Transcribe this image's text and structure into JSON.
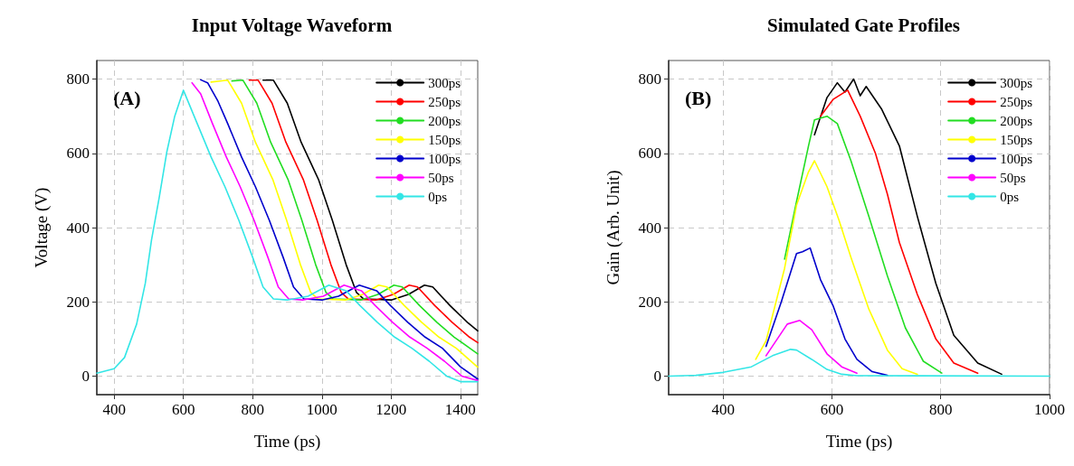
{
  "chart_data": [
    {
      "type": "line",
      "title": "Input Voltage Waveform",
      "xlabel": "Time (ps)",
      "ylabel": "Voltage (V)",
      "annotations": [
        "(A)"
      ],
      "xlim": [
        350,
        1450
      ],
      "xticks": [
        400,
        600,
        800,
        1000,
        1200,
        1400
      ],
      "ylim": [
        -50,
        850
      ],
      "yticks": [
        0,
        200,
        400,
        600,
        800
      ],
      "grid": true,
      "legend": "top right",
      "marker": "none",
      "line_style": "solid",
      "series": [
        {
          "name": "300ps",
          "color": "#000000",
          "x": [
            830,
            860,
            900,
            940,
            990,
            1030,
            1070,
            1100,
            1120,
            1200,
            1250,
            1296,
            1320,
            1370,
            1420,
            1450
          ],
          "values": [
            797,
            797,
            735,
            630,
            530,
            420,
            300,
            225,
            208,
            205,
            220,
            245,
            240,
            190,
            145,
            122
          ]
        },
        {
          "name": "250ps",
          "color": "#ff0000",
          "x": [
            790,
            816,
            856,
            896,
            946,
            986,
            1026,
            1056,
            1076,
            1156,
            1206,
            1252,
            1276,
            1326,
            1376,
            1426,
            1450
          ],
          "values": [
            797,
            797,
            735,
            630,
            530,
            420,
            300,
            225,
            208,
            205,
            220,
            245,
            240,
            190,
            145,
            105,
            90
          ]
        },
        {
          "name": "200ps",
          "color": "#22dd22",
          "x": [
            740,
            772,
            812,
            852,
            902,
            942,
            982,
            1012,
            1032,
            1112,
            1162,
            1208,
            1232,
            1282,
            1332,
            1382,
            1450
          ],
          "values": [
            795,
            797,
            735,
            630,
            530,
            420,
            300,
            225,
            208,
            205,
            220,
            245,
            240,
            190,
            145,
            105,
            60
          ]
        },
        {
          "name": "150ps",
          "color": "#ffff00",
          "x": [
            680,
            700,
            728,
            768,
            808,
            858,
            898,
            938,
            968,
            988,
            1068,
            1118,
            1164,
            1188,
            1238,
            1288,
            1338,
            1388,
            1450
          ],
          "values": [
            792,
            794,
            797,
            735,
            630,
            530,
            420,
            300,
            225,
            208,
            205,
            220,
            245,
            240,
            190,
            145,
            105,
            75,
            24
          ]
        },
        {
          "name": "100ps",
          "color": "#0000cc",
          "x": [
            650,
            670,
            700,
            728,
            768,
            808,
            848,
            888,
            918,
            948,
            1000,
            1048,
            1108,
            1158,
            1198,
            1248,
            1298,
            1348,
            1400,
            1450
          ],
          "values": [
            798,
            790,
            740,
            680,
            590,
            510,
            420,
            320,
            240,
            208,
            205,
            215,
            245,
            230,
            190,
            145,
            105,
            75,
            25,
            -8
          ]
        },
        {
          "name": "50ps",
          "color": "#ff00ff",
          "x": [
            625,
            650,
            684,
            724,
            764,
            804,
            844,
            874,
            904,
            944,
            1004,
            1064,
            1114,
            1154,
            1204,
            1254,
            1304,
            1354,
            1404,
            1450
          ],
          "values": [
            790,
            760,
            680,
            590,
            510,
            420,
            320,
            240,
            208,
            205,
            215,
            245,
            230,
            190,
            145,
            105,
            75,
            40,
            0,
            -12
          ]
        },
        {
          "name": "0ps",
          "color": "#33e6e6",
          "x": [
            350,
            400,
            430,
            465,
            490,
            508,
            530,
            552,
            575,
            600,
            640,
            680,
            720,
            760,
            800,
            830,
            860,
            900,
            960,
            1020,
            1070,
            1110,
            1160,
            1210,
            1260,
            1310,
            1360,
            1400,
            1450
          ],
          "values": [
            8,
            20,
            50,
            140,
            250,
            367,
            480,
            603,
            700,
            770,
            680,
            590,
            510,
            420,
            320,
            240,
            208,
            205,
            215,
            245,
            230,
            190,
            145,
            105,
            75,
            40,
            0,
            -15,
            -15
          ]
        }
      ]
    },
    {
      "type": "line",
      "title": "Simulated Gate Profiles",
      "xlabel": "Time (ps)",
      "ylabel": "Gain (Arb. Unit)",
      "annotations": [
        "(B)"
      ],
      "xlim": [
        300,
        1000
      ],
      "xticks": [
        400,
        600,
        800,
        1000
      ],
      "ylim": [
        -50,
        850
      ],
      "yticks": [
        0,
        200,
        400,
        600,
        800
      ],
      "grid": true,
      "legend": "top right",
      "marker": "none",
      "line_style": "solid",
      "series": [
        {
          "name": "300ps",
          "color": "#000000",
          "x": [
            568,
            591,
            610,
            624,
            640,
            652,
            663,
            691,
            724,
            757,
            791,
            824,
            868,
            912
          ],
          "values": [
            650,
            750,
            790,
            765,
            800,
            755,
            780,
            720,
            620,
            430,
            250,
            110,
            35,
            5
          ]
        },
        {
          "name": "250ps",
          "color": "#ff0000",
          "x": [
            579,
            602,
            629,
            652,
            680,
            702,
            724,
            757,
            791,
            824,
            868
          ],
          "values": [
            700,
            745,
            770,
            700,
            600,
            490,
            360,
            220,
            100,
            35,
            8
          ]
        },
        {
          "name": "200ps",
          "color": "#22dd22",
          "x": [
            513,
            535,
            557,
            568,
            591,
            610,
            635,
            668,
            702,
            735,
            768,
            802
          ],
          "values": [
            315,
            470,
            620,
            690,
            700,
            680,
            580,
            430,
            270,
            130,
            40,
            8
          ]
        },
        {
          "name": "150ps",
          "color": "#ffff00",
          "x": [
            460,
            479,
            513,
            535,
            557,
            568,
            591,
            613,
            635,
            668,
            702,
            729,
            757
          ],
          "values": [
            45,
            95,
            290,
            460,
            550,
            580,
            510,
            420,
            320,
            180,
            70,
            20,
            5
          ]
        },
        {
          "name": "100ps",
          "color": "#0000cc",
          "x": [
            479,
            507,
            535,
            546,
            560,
            579,
            602,
            624,
            646,
            674,
            702
          ],
          "values": [
            80,
            200,
            330,
            335,
            345,
            260,
            190,
            100,
            45,
            12,
            2
          ]
        },
        {
          "name": "50ps",
          "color": "#ff00ff",
          "x": [
            479,
            518,
            541,
            563,
            591,
            618,
            646
          ],
          "values": [
            55,
            140,
            150,
            125,
            60,
            25,
            8
          ]
        },
        {
          "name": "0ps",
          "color": "#33e6e6",
          "x": [
            300,
            350,
            400,
            452,
            491,
            524,
            535,
            563,
            591,
            618,
            646,
            1000
          ],
          "values": [
            0,
            2,
            10,
            25,
            55,
            72,
            70,
            45,
            18,
            5,
            1,
            0
          ]
        }
      ]
    }
  ]
}
